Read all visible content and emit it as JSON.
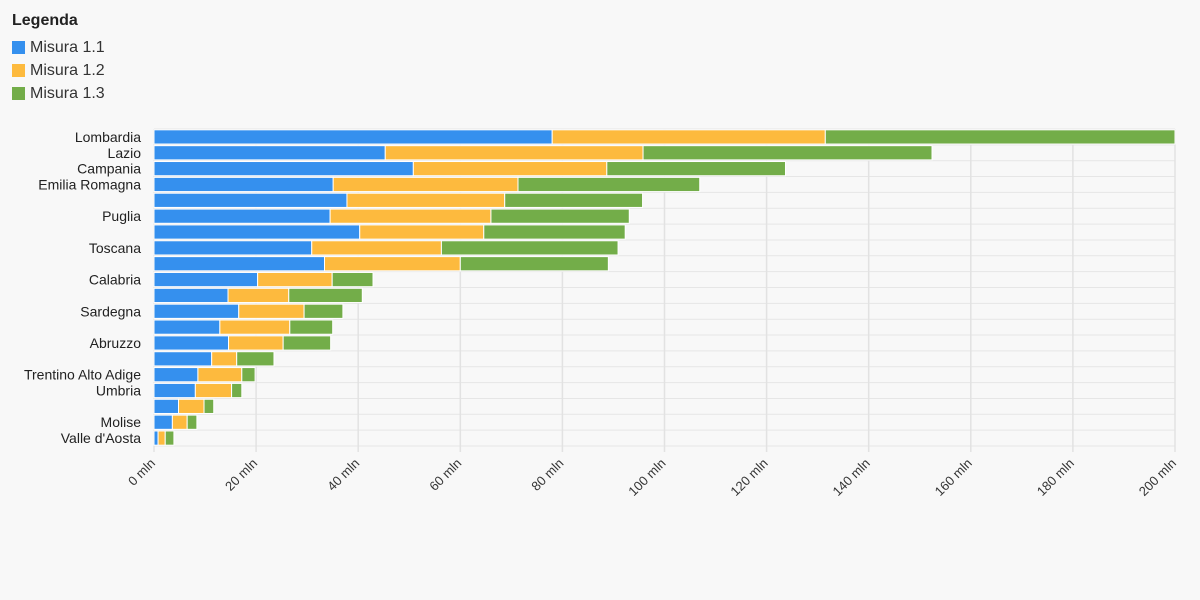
{
  "legend": {
    "title": "Legenda",
    "items": [
      {
        "label": "Misura 1.1",
        "color": "#3590ee"
      },
      {
        "label": "Misura 1.2",
        "color": "#fdba3e"
      },
      {
        "label": "Misura 1.3",
        "color": "#73ad49"
      }
    ]
  },
  "chart_data": {
    "type": "bar",
    "orientation": "horizontal",
    "stacked": true,
    "categories": [
      "Lombardia",
      "Lazio",
      "Campania",
      "Emilia Romagna",
      "",
      "Puglia",
      "",
      "Toscana",
      "",
      "Calabria",
      "",
      "Sardegna",
      "",
      "Abruzzo",
      "",
      "Trentino Alto Adige",
      "Umbria",
      "",
      "Molise",
      "Valle d'Aosta"
    ],
    "series": [
      {
        "name": "Misura 1.1",
        "color": "#3590ee",
        "values": [
          78,
          45.3,
          50.8,
          35.1,
          37.8,
          34.5,
          40.3,
          30.9,
          33.4,
          20.3,
          14.5,
          16.6,
          12.9,
          14.6,
          11.3,
          8.6,
          8.1,
          4.8,
          3.6,
          0.8
        ]
      },
      {
        "name": "Misura 1.2",
        "color": "#fdba3e",
        "values": [
          53.5,
          50.5,
          37.9,
          36.2,
          30.9,
          31.5,
          24.3,
          25.4,
          26.6,
          14.6,
          11.9,
          12.8,
          13.7,
          10.7,
          4.9,
          8.6,
          7.1,
          5,
          2.9,
          1.4
        ]
      },
      {
        "name": "Misura 1.3",
        "color": "#73ad49",
        "values": [
          68.5,
          56.6,
          35,
          35.6,
          27,
          27.1,
          27.7,
          34.6,
          29,
          8,
          14.4,
          7.6,
          8.4,
          9.3,
          7.3,
          2.6,
          2,
          1.9,
          1.9,
          1.7
        ]
      }
    ],
    "x_ticks": [
      "0 mln",
      "20 mln",
      "40 mln",
      "60 mln",
      "80 mln",
      "100 mln",
      "120 mln",
      "140 mln",
      "160 mln",
      "180 mln",
      "200 mln"
    ],
    "xlim": [
      0,
      200
    ],
    "grid": true,
    "legend_position": "top-left"
  }
}
